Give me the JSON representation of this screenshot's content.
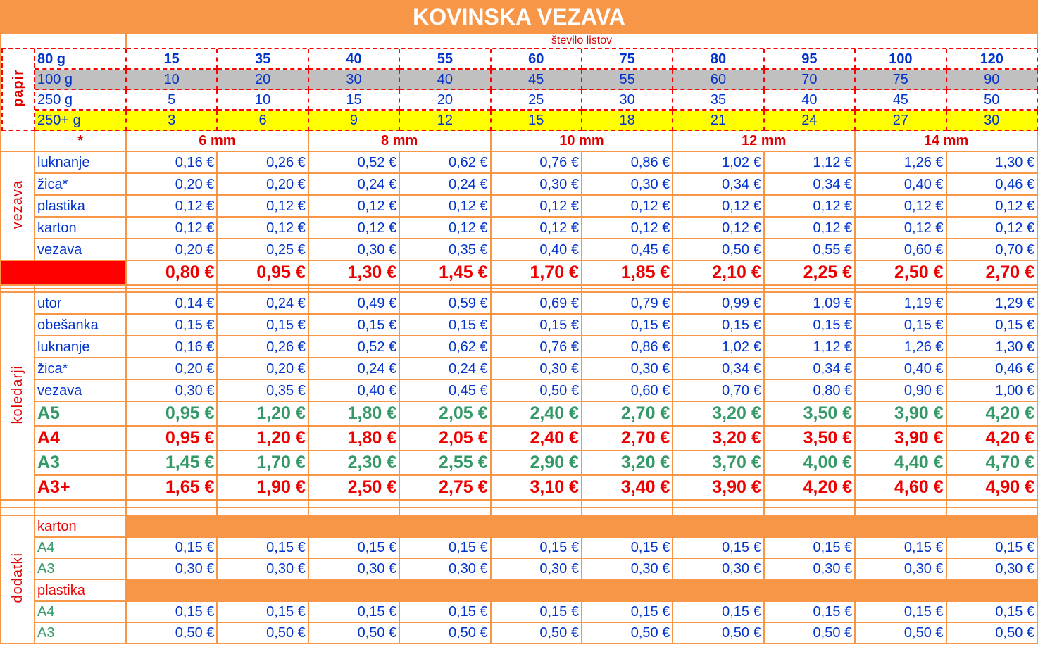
{
  "title": "KOVINSKA VEZAVA",
  "sheets_label": "število listov",
  "papir": {
    "label": "papir",
    "rows": [
      {
        "name": "80 g",
        "values": [
          15,
          35,
          40,
          55,
          60,
          75,
          80,
          95,
          100,
          120
        ]
      },
      {
        "name": "100 g",
        "values": [
          10,
          20,
          30,
          40,
          45,
          55,
          60,
          70,
          75,
          90
        ]
      },
      {
        "name": "250 g",
        "values": [
          5,
          10,
          15,
          20,
          25,
          30,
          35,
          40,
          45,
          50
        ]
      },
      {
        "name": "250+ g",
        "values": [
          3,
          6,
          9,
          12,
          15,
          18,
          21,
          24,
          27,
          30
        ]
      }
    ]
  },
  "star": "*",
  "sizes": [
    "6 mm",
    "8 mm",
    "10 mm",
    "12 mm",
    "14 mm"
  ],
  "vezava": {
    "label": "vezava",
    "rows": [
      {
        "name": "luknanje",
        "values": [
          "0,16 €",
          "0,26 €",
          "0,52 €",
          "0,62 €",
          "0,76 €",
          "0,86 €",
          "1,02 €",
          "1,12 €",
          "1,26 €",
          "1,30 €"
        ]
      },
      {
        "name": "žica*",
        "values": [
          "0,20 €",
          "0,20 €",
          "0,24 €",
          "0,24 €",
          "0,30 €",
          "0,30 €",
          "0,34 €",
          "0,34 €",
          "0,40 €",
          "0,46 €"
        ]
      },
      {
        "name": "plastika",
        "values": [
          "0,12 €",
          "0,12 €",
          "0,12 €",
          "0,12 €",
          "0,12 €",
          "0,12 €",
          "0,12 €",
          "0,12 €",
          "0,12 €",
          "0,12 €"
        ]
      },
      {
        "name": "karton",
        "values": [
          "0,12 €",
          "0,12 €",
          "0,12 €",
          "0,12 €",
          "0,12 €",
          "0,12 €",
          "0,12 €",
          "0,12 €",
          "0,12 €",
          "0,12 €"
        ]
      },
      {
        "name": "vezava",
        "values": [
          "0,20 €",
          "0,25 €",
          "0,30 €",
          "0,35 €",
          "0,40 €",
          "0,45 €",
          "0,50 €",
          "0,55 €",
          "0,60 €",
          "0,70 €"
        ]
      }
    ],
    "total": [
      "0,80 €",
      "0,95 €",
      "1,30 €",
      "1,45 €",
      "1,70 €",
      "1,85 €",
      "2,10 €",
      "2,25 €",
      "2,50 €",
      "2,70 €"
    ]
  },
  "koledarji": {
    "label": "koledarji",
    "rows": [
      {
        "name": "utor",
        "values": [
          "0,14 €",
          "0,24 €",
          "0,49 €",
          "0,59 €",
          "0,69 €",
          "0,79 €",
          "0,99 €",
          "1,09 €",
          "1,19 €",
          "1,29 €"
        ]
      },
      {
        "name": "obešanka",
        "values": [
          "0,15 €",
          "0,15 €",
          "0,15 €",
          "0,15 €",
          "0,15 €",
          "0,15 €",
          "0,15 €",
          "0,15 €",
          "0,15 €",
          "0,15 €"
        ]
      },
      {
        "name": "luknanje",
        "values": [
          "0,16 €",
          "0,26 €",
          "0,52 €",
          "0,62 €",
          "0,76 €",
          "0,86 €",
          "1,02 €",
          "1,12 €",
          "1,26 €",
          "1,30 €"
        ]
      },
      {
        "name": "žica*",
        "values": [
          "0,20 €",
          "0,20 €",
          "0,24 €",
          "0,24 €",
          "0,30 €",
          "0,30 €",
          "0,34 €",
          "0,34 €",
          "0,40 €",
          "0,46 €"
        ]
      },
      {
        "name": "vezava",
        "values": [
          "0,30 €",
          "0,35 €",
          "0,40 €",
          "0,45 €",
          "0,50 €",
          "0,60 €",
          "0,70 €",
          "0,80 €",
          "0,90 €",
          "1,00 €"
        ]
      }
    ],
    "totals": [
      {
        "name": "A5",
        "values": [
          "0,95 €",
          "1,20 €",
          "1,80 €",
          "2,05 €",
          "2,40 €",
          "2,70 €",
          "3,20 €",
          "3,50 €",
          "3,90 €",
          "4,20 €"
        ]
      },
      {
        "name": "A4",
        "values": [
          "0,95 €",
          "1,20 €",
          "1,80 €",
          "2,05 €",
          "2,40 €",
          "2,70 €",
          "3,20 €",
          "3,50 €",
          "3,90 €",
          "4,20 €"
        ]
      },
      {
        "name": "A3",
        "values": [
          "1,45 €",
          "1,70 €",
          "2,30 €",
          "2,55 €",
          "2,90 €",
          "3,20 €",
          "3,70 €",
          "4,00 €",
          "4,40 €",
          "4,70 €"
        ]
      },
      {
        "name": "A3+",
        "values": [
          "1,65 €",
          "1,90 €",
          "2,50 €",
          "2,75 €",
          "3,10 €",
          "3,40 €",
          "3,90 €",
          "4,20 €",
          "4,60 €",
          "4,90 €"
        ]
      }
    ]
  },
  "dodatki": {
    "label": "dodatki",
    "groups": [
      {
        "name": "karton",
        "rows": [
          {
            "name": "A4",
            "values": [
              "0,15 €",
              "0,15 €",
              "0,15 €",
              "0,15 €",
              "0,15 €",
              "0,15 €",
              "0,15 €",
              "0,15 €",
              "0,15 €",
              "0,15 €"
            ]
          },
          {
            "name": "A3",
            "values": [
              "0,30 €",
              "0,30 €",
              "0,30 €",
              "0,30 €",
              "0,30 €",
              "0,30 €",
              "0,30 €",
              "0,30 €",
              "0,30 €",
              "0,30 €"
            ]
          }
        ]
      },
      {
        "name": "plastika",
        "rows": [
          {
            "name": "A4",
            "values": [
              "0,15 €",
              "0,15 €",
              "0,15 €",
              "0,15 €",
              "0,15 €",
              "0,15 €",
              "0,15 €",
              "0,15 €",
              "0,15 €",
              "0,15 €"
            ]
          },
          {
            "name": "A3",
            "values": [
              "0,50 €",
              "0,50 €",
              "0,50 €",
              "0,50 €",
              "0,50 €",
              "0,50 €",
              "0,50 €",
              "0,50 €",
              "0,50 €",
              "0,50 €"
            ]
          }
        ]
      }
    ]
  }
}
